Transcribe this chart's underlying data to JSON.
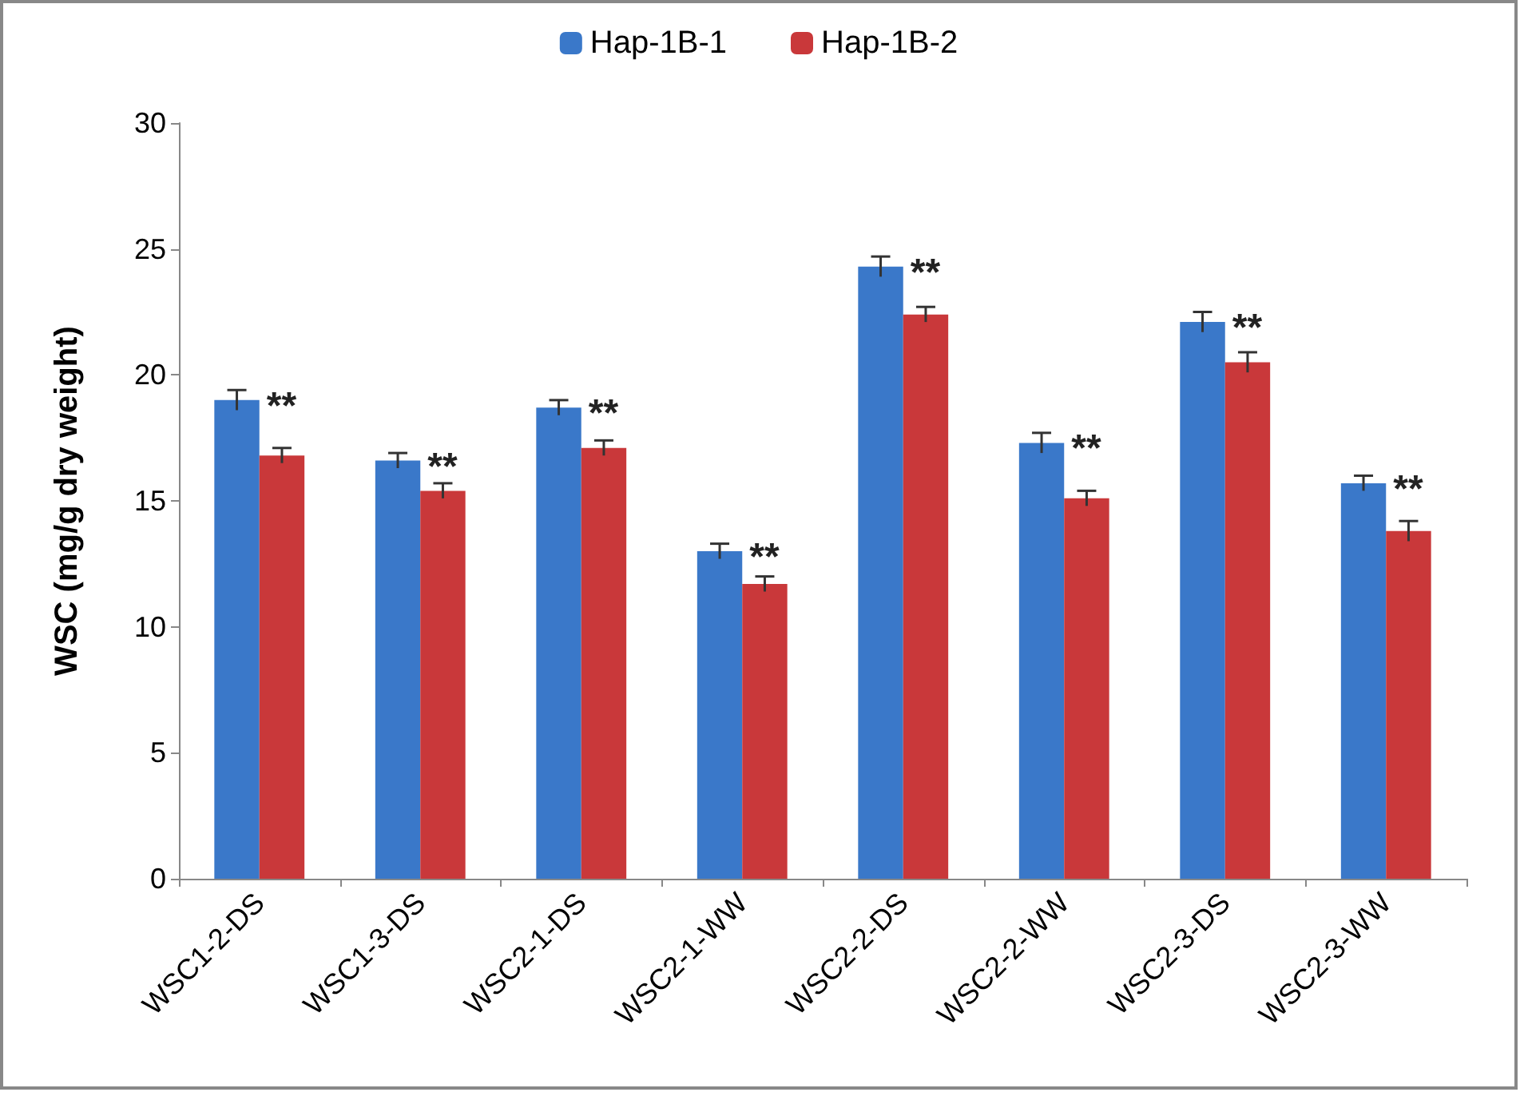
{
  "chart_data": {
    "type": "bar",
    "ylabel": "WSC (mg/g dry weight)",
    "categories": [
      "WSC1-2-DS",
      "WSC1-3-DS",
      "WSC2-1-DS",
      "WSC2-1-WW",
      "WSC2-2-DS",
      "WSC2-2-WW",
      "WSC2-3-DS",
      "WSC2-3-WW"
    ],
    "series": [
      {
        "name": "Hap-1B-1",
        "color": "#3a78c9",
        "values": [
          19.0,
          16.6,
          18.7,
          13.0,
          24.3,
          17.3,
          22.1,
          15.7
        ],
        "errors": [
          0.4,
          0.3,
          0.3,
          0.3,
          0.4,
          0.4,
          0.4,
          0.3
        ]
      },
      {
        "name": "Hap-1B-2",
        "color": "#c9383a",
        "values": [
          16.8,
          15.4,
          17.1,
          11.7,
          22.4,
          15.1,
          20.5,
          13.8
        ],
        "errors": [
          0.3,
          0.3,
          0.3,
          0.3,
          0.3,
          0.3,
          0.4,
          0.4
        ]
      }
    ],
    "ylim": [
      0,
      30
    ],
    "yticks": [
      0,
      5,
      10,
      15,
      20,
      25,
      30
    ],
    "grid": false,
    "legend": "top",
    "annotations": [
      {
        "text": "**",
        "x": "WSC1-2-DS",
        "y": 19.0
      },
      {
        "text": "**",
        "x": "WSC1-3-DS",
        "y": 16.6
      },
      {
        "text": "**",
        "x": "WSC2-1-DS",
        "y": 18.7
      },
      {
        "text": "**",
        "x": "WSC2-1-WW",
        "y": 13.0
      },
      {
        "text": "**",
        "x": "WSC2-2-DS",
        "y": 24.3
      },
      {
        "text": "**",
        "x": "WSC2-2-WW",
        "y": 17.3
      },
      {
        "text": "**",
        "x": "WSC2-3-DS",
        "y": 22.1
      },
      {
        "text": "**",
        "x": "WSC2-3-WW",
        "y": 15.7
      }
    ]
  }
}
